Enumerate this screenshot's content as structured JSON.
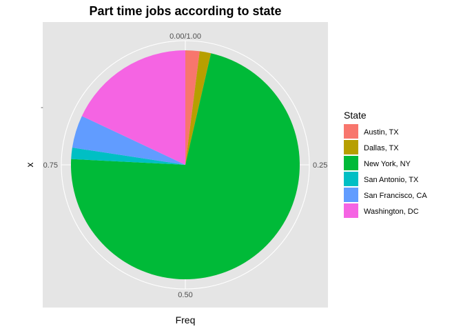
{
  "chart_data": {
    "type": "pie",
    "title": "Part time jobs according to state",
    "xlabel": "Freq",
    "ylabel": "x",
    "y_tick_labels": [
      "-"
    ],
    "theta_ticks": [
      {
        "value": 0.0,
        "label": "0.00/1.00"
      },
      {
        "value": 0.25,
        "label": "0.25"
      },
      {
        "value": 0.5,
        "label": "0.50"
      },
      {
        "value": 0.75,
        "label": "0.75"
      }
    ],
    "legend": {
      "title": "State",
      "position": "right"
    },
    "slices": [
      {
        "name": "Austin, TX",
        "value": 0.02,
        "color": "#F8766D"
      },
      {
        "name": "Dallas, TX",
        "value": 0.016,
        "color": "#B79F00"
      },
      {
        "name": "New York, NY",
        "value": 0.722,
        "color": "#00BA38"
      },
      {
        "name": "San Antonio, TX",
        "value": 0.016,
        "color": "#00BFC4"
      },
      {
        "name": "San Francisco, CA",
        "value": 0.046,
        "color": "#619CFF"
      },
      {
        "name": "Washington, DC",
        "value": 0.18,
        "color": "#F564E3"
      }
    ],
    "grid": true,
    "panel_background": "#E5E5E5",
    "grid_color": "#FFFFFF"
  }
}
